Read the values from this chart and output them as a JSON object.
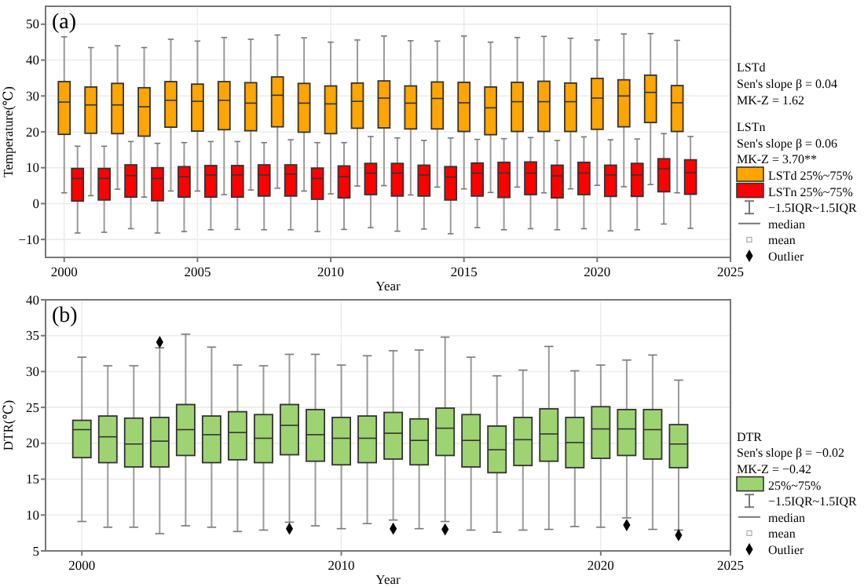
{
  "chart_data": [
    {
      "type": "box",
      "title": "(a)",
      "xlabel": "Year",
      "ylabel": "Temperature(℃)",
      "xlim": [
        1999.3,
        2025
      ],
      "xticks": [
        2000,
        2005,
        2010,
        2015,
        2020,
        2025
      ],
      "ylim": [
        -15,
        55
      ],
      "yticks": [
        -10,
        0,
        10,
        20,
        30,
        40,
        50
      ],
      "grid": true,
      "legend": "right",
      "annotations": [
        "LSTd",
        "Sen's slope β = 0.04",
        "MK-Z = 1.62",
        "LSTn",
        "Sen's slope β = 0.06",
        "MK-Z = 3.70**",
        "−1.5IQR~1.5IQR",
        "median",
        "mean",
        "Outlier"
      ],
      "series": [
        {
          "name": "LSTd 25%~75%",
          "color": "#ffa500",
          "x": [
            2000,
            2001,
            2002,
            2003,
            2004,
            2005,
            2006,
            2007,
            2008,
            2009,
            2010,
            2011,
            2012,
            2013,
            2014,
            2015,
            2016,
            2017,
            2018,
            2019,
            2020,
            2021,
            2022,
            2023
          ],
          "boxes": [
            {
              "low": 3,
              "q1": 19.3,
              "median": 28.3,
              "q3": 34,
              "high": 46.5
            },
            {
              "low": 2.2,
              "q1": 19.6,
              "median": 27.5,
              "q3": 32.5,
              "high": 43.5
            },
            {
              "low": 4,
              "q1": 19.5,
              "median": 27.5,
              "q3": 33.5,
              "high": 44
            },
            {
              "low": 1.8,
              "q1": 18.8,
              "median": 27,
              "q3": 32.3,
              "high": 43.5
            },
            {
              "low": 3.5,
              "q1": 21.3,
              "median": 28.8,
              "q3": 34,
              "high": 45.8
            },
            {
              "low": 3.5,
              "q1": 20.2,
              "median": 28.5,
              "q3": 33.3,
              "high": 45.3
            },
            {
              "low": 2.5,
              "q1": 20.6,
              "median": 28.8,
              "q3": 34,
              "high": 46.3
            },
            {
              "low": 3.8,
              "q1": 20.3,
              "median": 28,
              "q3": 33.7,
              "high": 45.8
            },
            {
              "low": 4.3,
              "q1": 21.4,
              "median": 30.2,
              "q3": 35.3,
              "high": 47
            },
            {
              "low": 3.5,
              "q1": 19.9,
              "median": 28,
              "q3": 33.5,
              "high": 46.2
            },
            {
              "low": 2.7,
              "q1": 19.5,
              "median": 27.8,
              "q3": 32.8,
              "high": 45
            },
            {
              "low": 4.9,
              "q1": 21,
              "median": 28.5,
              "q3": 33.6,
              "high": 45.6
            },
            {
              "low": 5,
              "q1": 21.1,
              "median": 29.4,
              "q3": 34.2,
              "high": 46.7
            },
            {
              "low": 2.4,
              "q1": 20.8,
              "median": 28,
              "q3": 32.8,
              "high": 45.4
            },
            {
              "low": 4.6,
              "q1": 20.8,
              "median": 29.3,
              "q3": 33.9,
              "high": 45.3
            },
            {
              "low": 4.1,
              "q1": 20.1,
              "median": 28.1,
              "q3": 33.8,
              "high": 46.7
            },
            {
              "low": 3.1,
              "q1": 19.2,
              "median": 26.7,
              "q3": 32.5,
              "high": 45
            },
            {
              "low": 4.6,
              "q1": 20.1,
              "median": 28.4,
              "q3": 33.8,
              "high": 46.3
            },
            {
              "low": 3,
              "q1": 20.1,
              "median": 28.4,
              "q3": 34.1,
              "high": 46.6
            },
            {
              "low": 4.1,
              "q1": 20.1,
              "median": 28.4,
              "q3": 33.6,
              "high": 46.1
            },
            {
              "low": 5.1,
              "q1": 20.7,
              "median": 29.4,
              "q3": 34.9,
              "high": 45.6
            },
            {
              "low": 4.7,
              "q1": 21.4,
              "median": 30,
              "q3": 34.5,
              "high": 47.3
            },
            {
              "low": 5.3,
              "q1": 22.6,
              "median": 31,
              "q3": 35.8,
              "high": 47.4
            },
            {
              "low": 3,
              "q1": 20.1,
              "median": 28.1,
              "q3": 32.9,
              "high": 45.5
            }
          ]
        },
        {
          "name": "LSTn 25%~75%",
          "color": "#ff0000",
          "x": [
            2000.5,
            2001.5,
            2002.5,
            2003.5,
            2004.5,
            2005.5,
            2006.5,
            2007.5,
            2008.5,
            2009.5,
            2010.5,
            2011.5,
            2012.5,
            2013.5,
            2014.5,
            2015.5,
            2016.5,
            2017.5,
            2018.5,
            2019.5,
            2020.5,
            2021.5,
            2022.5,
            2023.5
          ],
          "boxes": [
            {
              "low": -8.2,
              "q1": 0.7,
              "median": 7,
              "q3": 9.8,
              "high": 16
            },
            {
              "low": -8,
              "q1": 1,
              "median": 7,
              "q3": 9.8,
              "high": 16
            },
            {
              "low": -7,
              "q1": 1.8,
              "median": 7.8,
              "q3": 10.8,
              "high": 17.3
            },
            {
              "low": -8.2,
              "q1": 0.8,
              "median": 7,
              "q3": 10,
              "high": 16.8
            },
            {
              "low": -7.8,
              "q1": 1.8,
              "median": 7.5,
              "q3": 10.3,
              "high": 17
            },
            {
              "low": -7.3,
              "q1": 1.8,
              "median": 8,
              "q3": 10.6,
              "high": 17.3
            },
            {
              "low": -7.2,
              "q1": 1.8,
              "median": 8,
              "q3": 10.6,
              "high": 17.3
            },
            {
              "low": -7.3,
              "q1": 2.1,
              "median": 8,
              "q3": 10.8,
              "high": 17
            },
            {
              "low": -7.3,
              "q1": 2.1,
              "median": 8.2,
              "q3": 10.8,
              "high": 17.8
            },
            {
              "low": -7.8,
              "q1": 1.2,
              "median": 7,
              "q3": 9.9,
              "high": 17
            },
            {
              "low": -7.2,
              "q1": 1.6,
              "median": 7.5,
              "q3": 10.5,
              "high": 17
            },
            {
              "low": -6.7,
              "q1": 2.5,
              "median": 8.5,
              "q3": 11.2,
              "high": 18.7
            },
            {
              "low": -7.7,
              "q1": 2.1,
              "median": 8.5,
              "q3": 11.2,
              "high": 18.3
            },
            {
              "low": -7.1,
              "q1": 2.1,
              "median": 8,
              "q3": 10.7,
              "high": 17.6
            },
            {
              "low": -8.4,
              "q1": 1,
              "median": 7.4,
              "q3": 10.3,
              "high": 18.3
            },
            {
              "low": -6.7,
              "q1": 2.1,
              "median": 8.5,
              "q3": 11.3,
              "high": 17.9
            },
            {
              "low": -7.3,
              "q1": 1.7,
              "median": 8.5,
              "q3": 11.5,
              "high": 18.1
            },
            {
              "low": -7,
              "q1": 2.5,
              "median": 8.5,
              "q3": 11.6,
              "high": 18.4
            },
            {
              "low": -7.3,
              "q1": 1.6,
              "median": 7.7,
              "q3": 10.7,
              "high": 17.6
            },
            {
              "low": -7,
              "q1": 2.5,
              "median": 8.5,
              "q3": 11.5,
              "high": 18.6
            },
            {
              "low": -7.6,
              "q1": 2,
              "median": 8,
              "q3": 10.7,
              "high": 17.8
            },
            {
              "low": -7.3,
              "q1": 2,
              "median": 8,
              "q3": 11.2,
              "high": 18
            },
            {
              "low": -5.7,
              "q1": 3.3,
              "median": 9.7,
              "q3": 12.5,
              "high": 19.5
            },
            {
              "low": -6.9,
              "q1": 2.6,
              "median": 8.6,
              "q3": 12.2,
              "high": 18.7
            }
          ]
        }
      ]
    },
    {
      "type": "box",
      "title": "(b)",
      "xlabel": "Year",
      "ylabel": "DTR(℃)",
      "xlim": [
        1998.6,
        2025
      ],
      "xticks": [
        2000,
        2010,
        2020,
        2025
      ],
      "ylim": [
        5,
        40
      ],
      "yticks": [
        5,
        10,
        15,
        20,
        25,
        30,
        35,
        40
      ],
      "grid": true,
      "legend": "right",
      "annotations": [
        "DTR",
        "Sen's slope β = −0.02",
        "MK-Z = −0.42",
        "−1.5IQR~1.5IQR",
        "median",
        "mean",
        "Outlier"
      ],
      "series": [
        {
          "name": "25%~75%",
          "color": "#9ed372",
          "x": [
            2000,
            2001,
            2002,
            2003,
            2004,
            2005,
            2006,
            2007,
            2008,
            2009,
            2010,
            2011,
            2012,
            2013,
            2014,
            2015,
            2016,
            2017,
            2018,
            2019,
            2020,
            2021,
            2022,
            2023
          ],
          "boxes": [
            {
              "low": 9.1,
              "q1": 18,
              "median": 21.9,
              "q3": 23.2,
              "high": 32
            },
            {
              "low": 8.3,
              "q1": 17.3,
              "median": 20.9,
              "q3": 23.8,
              "high": 30.8
            },
            {
              "low": 8.3,
              "q1": 16.7,
              "median": 19.9,
              "q3": 23.5,
              "high": 30.8
            },
            {
              "low": 7.4,
              "q1": 16.7,
              "median": 20.3,
              "q3": 23.6,
              "high": 33.3,
              "outliers": [
                34.1
              ]
            },
            {
              "low": 8.5,
              "q1": 18.3,
              "median": 21.9,
              "q3": 25.4,
              "high": 35.2
            },
            {
              "low": 8.3,
              "q1": 17.3,
              "median": 21.2,
              "q3": 23.8,
              "high": 33.4
            },
            {
              "low": 7.7,
              "q1": 17.7,
              "median": 21.5,
              "q3": 24.4,
              "high": 30.9
            },
            {
              "low": 7.9,
              "q1": 17.3,
              "median": 20.7,
              "q3": 24,
              "high": 30.8
            },
            {
              "low": 9,
              "q1": 18.4,
              "median": 22.5,
              "q3": 25.4,
              "high": 32.4,
              "outliers": [
                8.1
              ]
            },
            {
              "low": 8.5,
              "q1": 17.5,
              "median": 21.2,
              "q3": 24.7,
              "high": 32.4
            },
            {
              "low": 8.1,
              "q1": 17,
              "median": 20.7,
              "q3": 23.6,
              "high": 30.9
            },
            {
              "low": 8.8,
              "q1": 17.3,
              "median": 20.7,
              "q3": 23.8,
              "high": 32.2
            },
            {
              "low": 9.3,
              "q1": 17.8,
              "median": 21.4,
              "q3": 24.3,
              "high": 32.9,
              "outliers": [
                8.1
              ]
            },
            {
              "low": 8.1,
              "q1": 17,
              "median": 20.4,
              "q3": 23.4,
              "high": 33
            },
            {
              "low": 9.1,
              "q1": 18.3,
              "median": 22.1,
              "q3": 24.9,
              "high": 34.8,
              "outliers": [
                8
              ]
            },
            {
              "low": 7.9,
              "q1": 16.7,
              "median": 20.4,
              "q3": 24,
              "high": 32
            },
            {
              "low": 7.6,
              "q1": 15.9,
              "median": 19.1,
              "q3": 22.4,
              "high": 29.4
            },
            {
              "low": 7.9,
              "q1": 16.9,
              "median": 20.5,
              "q3": 23.6,
              "high": 30.2
            },
            {
              "low": 8,
              "q1": 17.5,
              "median": 21.3,
              "q3": 24.8,
              "high": 33.5
            },
            {
              "low": 8.4,
              "q1": 16.6,
              "median": 20.1,
              "q3": 23.6,
              "high": 30.1
            },
            {
              "low": 8.3,
              "q1": 17.9,
              "median": 22,
              "q3": 25.1,
              "high": 30.9
            },
            {
              "low": 9.6,
              "q1": 18.3,
              "median": 22,
              "q3": 24.7,
              "high": 31.6,
              "outliers": [
                8.6
              ]
            },
            {
              "low": 8,
              "q1": 17.8,
              "median": 21.9,
              "q3": 24.7,
              "high": 32.3
            },
            {
              "low": 7.9,
              "q1": 16.6,
              "median": 19.9,
              "q3": 22.6,
              "high": 28.8,
              "outliers": [
                7.2
              ]
            }
          ]
        }
      ]
    }
  ]
}
